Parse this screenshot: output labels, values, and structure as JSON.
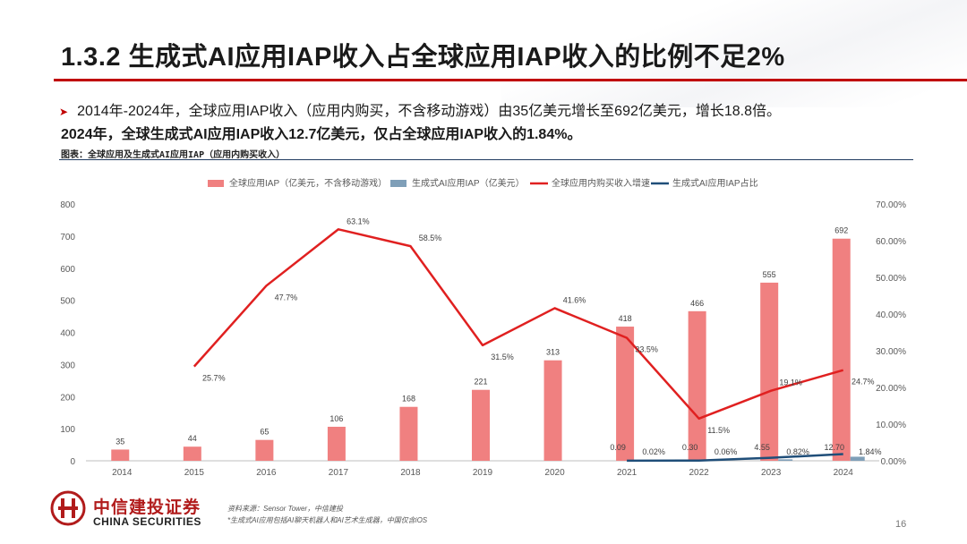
{
  "header": {
    "title": "1.3.2 生成式AI应用IAP收入占全球应用IAP收入的比例不足2%",
    "bullet_text": "2014年-2024年，全球应用IAP收入（应用内购买，不含移动游戏）由35亿美元增长至692亿美元，增长18.8倍。",
    "bold_text": "2024年，全球生成式AI应用IAP收入12.7亿美元，仅占全球应用IAP收入的1.84%。",
    "figure_caption": "图表：全球应用及生成式AI应用IAP（应用内购买收入）"
  },
  "chart_data": {
    "type": "bar",
    "categories": [
      "2014",
      "2015",
      "2016",
      "2017",
      "2018",
      "2019",
      "2020",
      "2021",
      "2022",
      "2023",
      "2024"
    ],
    "series": [
      {
        "name": "全球应用IAP（亿美元，不含移动游戏）",
        "kind": "bar",
        "axis": "left",
        "color": "#f08080",
        "values": [
          35,
          44,
          65,
          106,
          168,
          221,
          313,
          418,
          466,
          555,
          692
        ],
        "labels": [
          "35",
          "44",
          "65",
          "106",
          "168",
          "221",
          "313",
          "418",
          "466",
          "555",
          "692"
        ]
      },
      {
        "name": "生成式AI应用IAP（亿美元）",
        "kind": "bar",
        "axis": "left",
        "color": "#7f9fb8",
        "values": [
          null,
          null,
          null,
          null,
          null,
          null,
          null,
          0.09,
          0.3,
          4.55,
          12.7
        ],
        "labels": [
          "",
          "",
          "",
          "",
          "",
          "",
          "",
          "0.09",
          "0.30",
          "4.55",
          "12.70"
        ]
      },
      {
        "name": "全球应用内购买收入增速",
        "kind": "line",
        "axis": "right",
        "color": "#e02020",
        "values": [
          null,
          25.7,
          47.7,
          63.1,
          58.5,
          31.5,
          41.6,
          33.5,
          11.5,
          19.1,
          24.7
        ],
        "labels": [
          "",
          "25.7%",
          "47.7%",
          "63.1%",
          "58.5%",
          "31.5%",
          "41.6%",
          "33.5%",
          "11.5%",
          "19.1%",
          "24.7%"
        ]
      },
      {
        "name": "生成式AI应用IAP占比",
        "kind": "line",
        "axis": "right",
        "color": "#1f4e79",
        "values": [
          null,
          null,
          null,
          null,
          null,
          null,
          null,
          0.02,
          0.06,
          0.82,
          1.84
        ],
        "labels": [
          "",
          "",
          "",
          "",
          "",
          "",
          "",
          "0.02%",
          "0.06%",
          "0.82%",
          "1.84%"
        ]
      }
    ],
    "left_axis": {
      "ylim": [
        0,
        800
      ],
      "ticks": [
        "0",
        "100",
        "200",
        "300",
        "400",
        "500",
        "600",
        "700",
        "800"
      ]
    },
    "right_axis": {
      "ylim": [
        0,
        70
      ],
      "ticks": [
        "0.00%",
        "10.00%",
        "20.00%",
        "30.00%",
        "40.00%",
        "50.00%",
        "60.00%",
        "70.00%"
      ]
    },
    "legend_position": "top",
    "grid": false
  },
  "footer": {
    "company_cn": "中信建投证券",
    "company_en": "CHINA SECURITIES",
    "source_line1": "资料来源：Sensor Tower，中信建投",
    "source_line2": "*生成式AI应用包括AI聊天机器人和AI艺术生成器，中国仅含iOS",
    "page_number": "16"
  },
  "colors": {
    "accent": "#c00000",
    "rule": "#1f3a5f"
  }
}
